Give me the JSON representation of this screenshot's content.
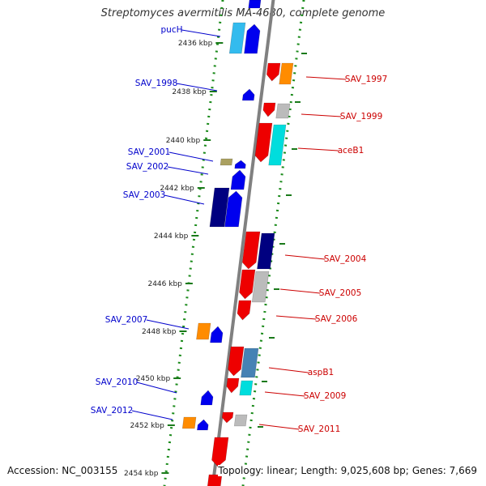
{
  "title": "Streptomyces avermitilis MA-4680, complete genome",
  "footer": {
    "accession_label": "Accession:",
    "accession": "NC_003155",
    "topology_label": "Topology:",
    "topology": "linear",
    "length_label": "Length:",
    "length": "9,025,608 bp",
    "genes_label": "Genes:",
    "genes": "7,669"
  },
  "scale": {
    "unit": "kbp",
    "ticks": [
      "2436 kbp",
      "2438 kbp",
      "2440 kbp",
      "2442 kbp",
      "2444 kbp",
      "2446 kbp",
      "2448 kbp",
      "2450 kbp",
      "2452 kbp",
      "2454 kbp"
    ]
  },
  "colors": {
    "backbone": "#808080",
    "guide_dots": "#1a8a1a",
    "minus_labels": "#0000cc",
    "plus_labels": "#cc0000",
    "red": "#ee0000",
    "orange": "#ff8c00",
    "blue": "#0000ee",
    "navy": "#000080",
    "cyan": "#00dddd",
    "lightblue": "#33bbee",
    "steelblue": "#4682b4",
    "gray": "#bbbbbb",
    "khaki": "#aaa060"
  },
  "labels": {
    "minus": [
      "pucH",
      "SAV_1998",
      "SAV_2001",
      "SAV_2002",
      "SAV_2003",
      "SAV_2007",
      "SAV_2010",
      "SAV_2012"
    ],
    "plus": [
      "SAV_1997",
      "SAV_1999",
      "aceB1",
      "SAV_2004",
      "SAV_2005",
      "SAV_2006",
      "aspB1",
      "SAV_2009",
      "SAV_2011"
    ]
  }
}
